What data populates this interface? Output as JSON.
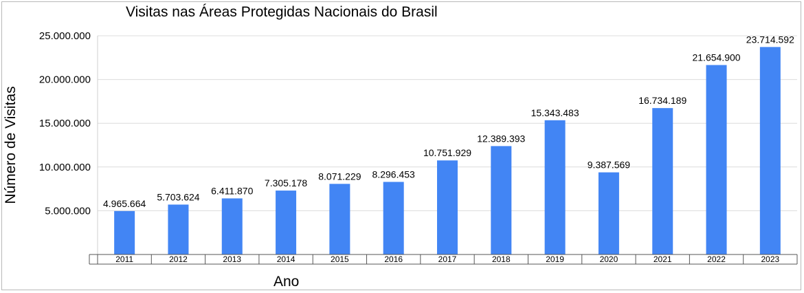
{
  "chart_data": {
    "type": "bar",
    "title": "Visitas nas Áreas Protegidas Nacionais do Brasil",
    "xlabel": "Ano",
    "ylabel": "Número de Visitas",
    "ylim": [
      0,
      25000000
    ],
    "yticks": [
      5000000,
      10000000,
      15000000,
      20000000,
      25000000
    ],
    "ytick_labels": [
      "5.000.000",
      "10.000.000",
      "15.000.000",
      "20.000.000",
      "25.000.000"
    ],
    "grid": true,
    "legend": "none",
    "bar_color": "#4285f4",
    "categories": [
      "2011",
      "2012",
      "2013",
      "2014",
      "2015",
      "2016",
      "2017",
      "2018",
      "2019",
      "2020",
      "2021",
      "2022",
      "2023"
    ],
    "values": [
      4965664,
      5703624,
      6411870,
      7305178,
      8071229,
      8296453,
      10751929,
      12389393,
      15343483,
      9387569,
      16734189,
      21654900,
      23714592
    ],
    "data_labels": [
      "4.965.664",
      "5.703.624",
      "6.411.870",
      "7.305.178",
      "8.071.229",
      "8.296.453",
      "10.751.929",
      "12.389.393",
      "15.343.483",
      "9.387.569",
      "16.734.189",
      "21.654.900",
      "23.714.592"
    ]
  }
}
